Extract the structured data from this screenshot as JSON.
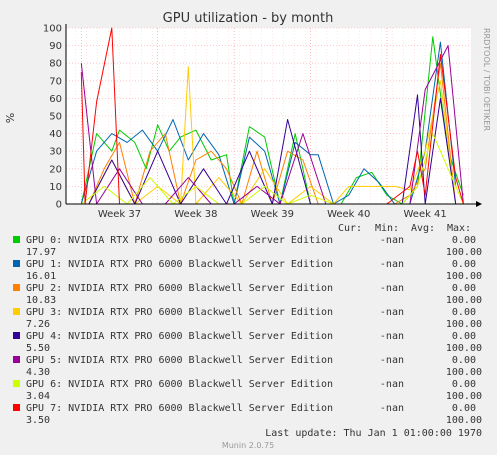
{
  "chart_data": {
    "type": "line",
    "title": "GPU utilization - by month",
    "ylabel": "%",
    "ylim": [
      0,
      100
    ],
    "yticks": [
      0,
      10,
      20,
      30,
      40,
      50,
      60,
      70,
      80,
      90,
      100
    ],
    "xtick_labels": [
      "Week 37",
      "Week 38",
      "Week 39",
      "Week 40",
      "Week 41"
    ],
    "xlim": [
      36.3,
      41.6
    ],
    "grid": true,
    "side_text": "RRDTOOL / TOBI OETIKER",
    "legend_header": {
      "cur": "Cur:",
      "min": "Min:",
      "avg": "Avg:",
      "max": "Max:"
    },
    "series": [
      {
        "name": "GPU 0: NVIDIA RTX PRO 6000 Blackwell Server Edition",
        "color": "#00cc00",
        "cur": "-nan",
        "min": "0.00",
        "avg": "17.97",
        "max": "100.00",
        "x": [
          36.5,
          36.7,
          36.9,
          37.0,
          37.2,
          37.35,
          37.5,
          37.65,
          37.8,
          38.0,
          38.2,
          38.4,
          38.5,
          38.7,
          38.9,
          39.1,
          39.3,
          39.5,
          39.7,
          39.9,
          40.1,
          40.3,
          40.5,
          40.7,
          40.9,
          41.1,
          41.3,
          41.5
        ],
        "y": [
          0,
          40,
          30,
          42,
          35,
          20,
          45,
          30,
          38,
          42,
          25,
          28,
          0,
          44,
          38,
          0,
          40,
          0,
          0,
          0,
          15,
          18,
          5,
          0,
          10,
          95,
          30,
          5
        ]
      },
      {
        "name": "GPU 1: NVIDIA RTX PRO 6000 Blackwell Server Edition",
        "color": "#0066b3",
        "cur": "-nan",
        "min": "0.00",
        "avg": "16.01",
        "max": "100.00",
        "x": [
          36.5,
          36.7,
          36.9,
          37.1,
          37.3,
          37.5,
          37.7,
          37.9,
          38.1,
          38.3,
          38.5,
          38.7,
          38.9,
          39.1,
          39.3,
          39.5,
          39.6,
          39.8,
          40.0,
          40.2,
          40.4,
          40.6,
          40.8,
          41.0,
          41.2,
          41.4
        ],
        "y": [
          0,
          30,
          40,
          35,
          42,
          30,
          48,
          25,
          40,
          28,
          0,
          38,
          30,
          0,
          35,
          28,
          28,
          0,
          5,
          20,
          12,
          0,
          0,
          30,
          92,
          10
        ]
      },
      {
        "name": "GPU 2: NVIDIA RTX PRO 6000 Blackwell Server Edition",
        "color": "#ff8000",
        "cur": "-nan",
        "min": "0.00",
        "avg": "10.83",
        "max": "100.00",
        "x": [
          36.6,
          36.8,
          37.0,
          37.2,
          37.4,
          37.6,
          37.8,
          38.0,
          38.2,
          38.4,
          38.6,
          38.8,
          39.0,
          39.2,
          39.4,
          39.6,
          39.8,
          40.0,
          40.2,
          40.4,
          40.6,
          40.8,
          41.0,
          41.2,
          41.4
        ],
        "y": [
          0,
          20,
          35,
          0,
          30,
          40,
          0,
          25,
          30,
          20,
          0,
          30,
          0,
          30,
          25,
          0,
          0,
          0,
          0,
          0,
          0,
          5,
          20,
          80,
          0
        ]
      },
      {
        "name": "GPU 3: NVIDIA RTX PRO 6000 Blackwell Server Edition",
        "color": "#ffcc00",
        "cur": "-nan",
        "min": "0.00",
        "avg": "7.26",
        "max": "100.00",
        "x": [
          36.6,
          36.9,
          37.2,
          37.5,
          37.8,
          37.9,
          38.0,
          38.3,
          38.6,
          38.9,
          39.2,
          39.5,
          39.8,
          40.0,
          40.3,
          40.6,
          40.8,
          41.0,
          41.2,
          41.4
        ],
        "y": [
          0,
          25,
          0,
          10,
          0,
          78,
          0,
          15,
          0,
          20,
          0,
          10,
          0,
          10,
          10,
          10,
          8,
          30,
          70,
          0
        ]
      },
      {
        "name": "GPU 4: NVIDIA RTX PRO 6000 Blackwell Server Edition",
        "color": "#330099",
        "cur": "-nan",
        "min": "0.00",
        "avg": "5.50",
        "max": "100.00",
        "x": [
          36.6,
          36.9,
          37.2,
          37.5,
          37.8,
          38.1,
          38.4,
          38.7,
          39.0,
          39.2,
          39.5,
          39.8,
          40.1,
          40.4,
          40.7,
          40.9,
          41.0,
          41.2,
          41.4
        ],
        "y": [
          0,
          25,
          0,
          30,
          0,
          20,
          0,
          30,
          0,
          48,
          0,
          0,
          0,
          0,
          0,
          62,
          0,
          60,
          0
        ]
      },
      {
        "name": "GPU 5: NVIDIA RTX PRO 6000 Blackwell Server Edition",
        "color": "#990099",
        "cur": "-nan",
        "min": "0.00",
        "avg": "4.30",
        "max": "100.00",
        "x": [
          36.5,
          36.7,
          37.0,
          37.3,
          37.6,
          37.9,
          38.2,
          38.5,
          38.8,
          39.1,
          39.4,
          39.7,
          40.0,
          40.3,
          40.6,
          40.8,
          41.0,
          41.3,
          41.5
        ],
        "y": [
          80,
          0,
          20,
          0,
          0,
          15,
          0,
          0,
          10,
          0,
          40,
          0,
          0,
          0,
          0,
          0,
          65,
          90,
          0
        ]
      },
      {
        "name": "GPU 6: NVIDIA RTX PRO 6000 Blackwell Server Edition",
        "color": "#ccff00",
        "cur": "-nan",
        "min": "0.00",
        "avg": "3.04",
        "max": "100.00",
        "x": [
          36.5,
          36.8,
          37.1,
          37.4,
          37.7,
          38.0,
          38.3,
          38.6,
          38.9,
          39.2,
          39.5,
          39.8,
          40.1,
          40.4,
          40.7,
          40.9,
          41.1,
          41.3,
          41.5
        ],
        "y": [
          0,
          10,
          0,
          15,
          0,
          10,
          0,
          0,
          10,
          0,
          5,
          0,
          0,
          0,
          0,
          10,
          40,
          20,
          0
        ]
      },
      {
        "name": "GPU 7: NVIDIA RTX PRO 6000 Blackwell Server Edition",
        "color": "#ff0000",
        "cur": "-nan",
        "min": "0.00",
        "avg": "3.50",
        "max": "100.00",
        "x": [
          36.5,
          36.55,
          36.7,
          36.9,
          37.0,
          37.2,
          37.5,
          37.8,
          38.1,
          38.4,
          38.7,
          39.0,
          39.3,
          39.6,
          39.9,
          40.2,
          40.5,
          40.8,
          40.9,
          41.0,
          41.2,
          41.4,
          41.5
        ],
        "y": [
          75,
          0,
          58,
          100,
          0,
          0,
          0,
          0,
          0,
          0,
          0,
          0,
          0,
          0,
          0,
          0,
          0,
          10,
          30,
          5,
          85,
          15,
          0
        ]
      }
    ]
  },
  "footer": {
    "last_update": "Last update: Thu Jan  1 01:00:00 1970",
    "munin": "Munin 2.0.75"
  }
}
